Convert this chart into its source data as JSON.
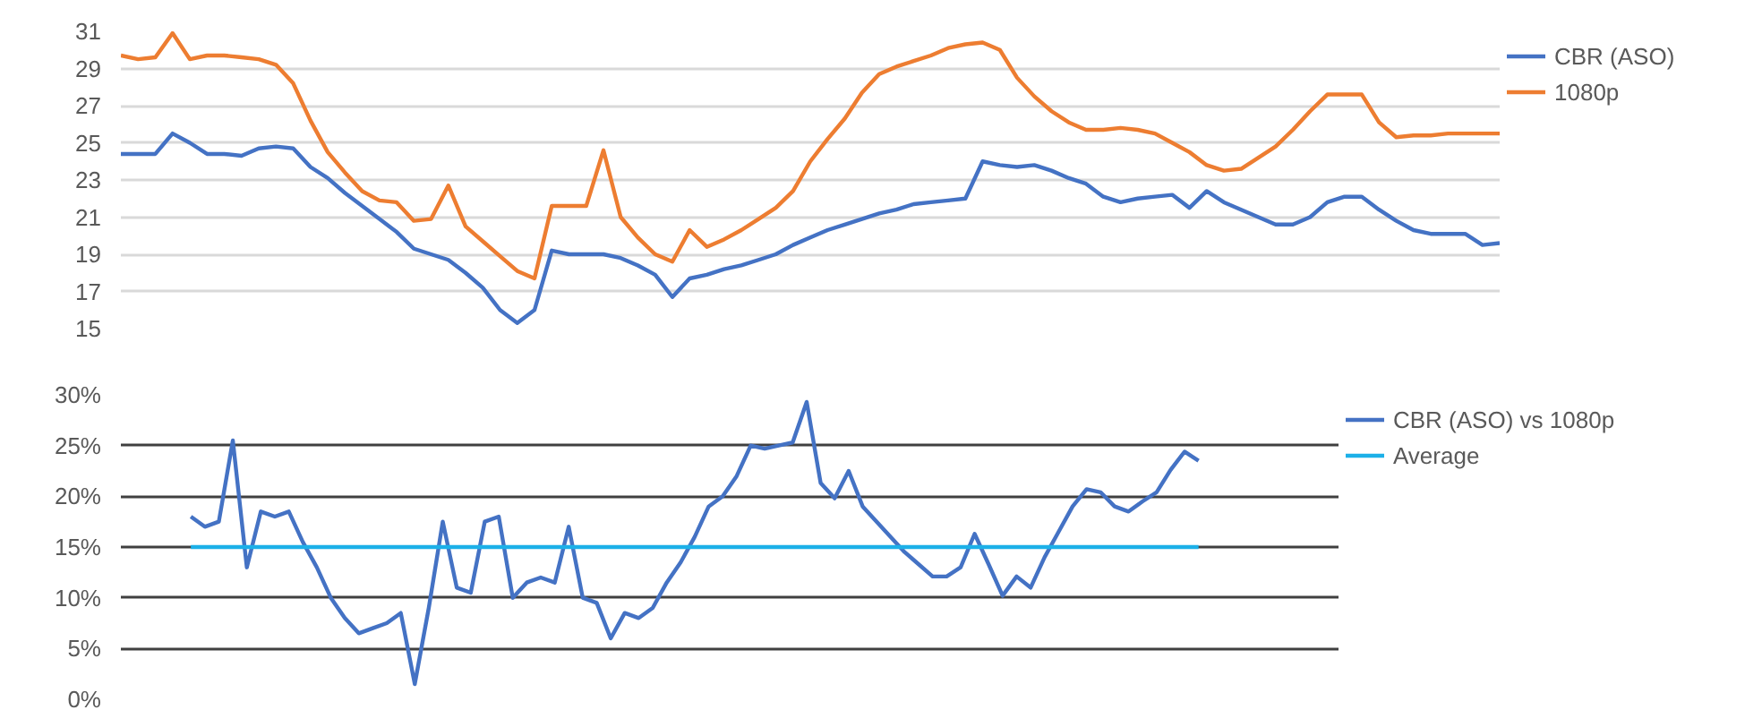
{
  "chart_data": [
    {
      "type": "line",
      "categories": [
        null,
        null,
        null,
        null,
        null,
        null,
        null,
        null,
        null,
        null,
        null,
        null,
        null,
        null,
        null,
        null,
        null,
        null,
        null,
        null,
        null,
        null,
        null,
        null,
        null,
        null,
        null,
        null,
        null,
        null,
        null,
        null,
        null,
        null,
        null,
        null,
        null,
        null,
        null,
        null,
        null,
        null,
        null,
        null,
        null,
        null,
        null,
        null,
        null,
        null,
        null,
        null,
        null,
        null,
        null,
        null,
        null,
        null,
        null,
        null,
        null,
        null,
        null,
        null,
        null,
        null,
        null,
        null,
        null,
        null,
        null,
        null,
        null,
        null,
        null,
        null,
        null,
        null,
        null,
        null,
        null
      ],
      "ylim": [
        15,
        31
      ],
      "yticks": [
        15,
        17,
        19,
        21,
        23,
        25,
        27,
        29,
        31
      ],
      "tick_labels": "y",
      "grid": "y",
      "legend": "right",
      "series": [
        {
          "name": "CBR (ASO)",
          "color": "#4472c4",
          "values": [
            24.4,
            24.4,
            24.4,
            25.5,
            25.0,
            24.4,
            24.4,
            24.3,
            24.7,
            24.8,
            24.7,
            23.7,
            23.1,
            22.3,
            21.6,
            20.9,
            20.2,
            19.3,
            19.0,
            18.7,
            18.0,
            17.2,
            16.0,
            15.3,
            16.0,
            19.2,
            19.0,
            19.0,
            19.0,
            18.8,
            18.4,
            17.9,
            16.7,
            17.7,
            17.9,
            18.2,
            18.4,
            18.7,
            19.0,
            19.5,
            19.9,
            20.3,
            20.6,
            20.9,
            21.2,
            21.4,
            21.7,
            21.8,
            21.9,
            22.0,
            24.0,
            23.8,
            23.7,
            23.8,
            23.5,
            23.1,
            22.8,
            22.1,
            21.8,
            22.0,
            22.1,
            22.2,
            21.5,
            22.4,
            21.8,
            21.4,
            21.0,
            20.6,
            20.6,
            21.0,
            21.8,
            22.1,
            22.1,
            21.4,
            20.8,
            20.3,
            20.1,
            20.1,
            20.1,
            19.5,
            19.6
          ]
        },
        {
          "name": "1080p",
          "color": "#ed7d31",
          "values": [
            29.7,
            29.5,
            29.6,
            30.9,
            29.5,
            29.7,
            29.7,
            29.6,
            29.5,
            29.2,
            28.2,
            26.2,
            24.5,
            23.4,
            22.4,
            21.9,
            21.8,
            20.8,
            20.9,
            22.7,
            20.5,
            19.7,
            18.9,
            18.1,
            17.7,
            21.6,
            21.6,
            21.6,
            24.6,
            21.0,
            19.9,
            19.0,
            18.6,
            20.3,
            19.4,
            19.8,
            20.3,
            20.9,
            21.5,
            22.4,
            24.0,
            25.2,
            26.3,
            27.7,
            28.7,
            29.1,
            29.4,
            29.7,
            30.1,
            30.3,
            30.4,
            30.0,
            28.5,
            27.5,
            26.7,
            26.1,
            25.7,
            25.7,
            25.8,
            25.7,
            25.5,
            25.0,
            24.5,
            23.8,
            23.5,
            23.6,
            24.2,
            24.8,
            25.7,
            26.7,
            27.6,
            27.6,
            27.6,
            26.1,
            25.3,
            25.4,
            25.4,
            25.5,
            25.5,
            25.5,
            25.5
          ]
        }
      ]
    },
    {
      "type": "line",
      "categories": [
        null,
        null,
        null,
        null,
        null,
        null,
        null,
        null,
        null,
        null,
        null,
        null,
        null,
        null,
        null,
        null,
        null,
        null,
        null,
        null,
        null,
        null,
        null,
        null,
        null,
        null,
        null,
        null,
        null,
        null,
        null,
        null,
        null,
        null,
        null,
        null,
        null,
        null,
        null,
        null,
        null,
        null,
        null,
        null,
        null,
        null,
        null,
        null,
        null,
        null,
        null,
        null,
        null,
        null,
        null,
        null,
        null,
        null,
        null,
        null,
        null,
        null,
        null,
        null,
        null,
        null,
        null,
        null,
        null,
        null,
        null,
        null,
        null,
        null,
        null,
        null,
        null,
        null,
        null,
        null,
        null,
        null,
        null,
        null,
        null,
        null,
        null,
        null
      ],
      "ylim": [
        0,
        30
      ],
      "yticks": [
        {
          "value": 0,
          "label": "0%"
        },
        {
          "value": 5,
          "label": "5%"
        },
        {
          "value": 10,
          "label": "10%"
        },
        {
          "value": 15,
          "label": "15%"
        },
        {
          "value": 20,
          "label": "20%"
        },
        {
          "value": 25,
          "label": "25%"
        },
        {
          "value": 30,
          "label": "30%"
        }
      ],
      "tick_labels": "y",
      "grid": "y",
      "legend": "right",
      "series": [
        {
          "name": "CBR (ASO) vs 1080p",
          "color": "#4472c4",
          "values": [
            null,
            null,
            null,
            null,
            null,
            18,
            17,
            17.5,
            25.5,
            13,
            18.5,
            18,
            18.5,
            15.5,
            13,
            10,
            8,
            6.5,
            7,
            7.5,
            8.5,
            1.5,
            9,
            17.5,
            11,
            10.5,
            17.5,
            18,
            10,
            11.5,
            12,
            11.5,
            17,
            10,
            9.5,
            6,
            8.5,
            8,
            9,
            11.5,
            13.5,
            16,
            19,
            20,
            22,
            25,
            24.7,
            25,
            25.3,
            29.3,
            21.3,
            19.8,
            22.5,
            19,
            17.5,
            16,
            14.5,
            13.3,
            12.1,
            12.1,
            13,
            16.3,
            13.3,
            10.2,
            12.1,
            11,
            14,
            16.5,
            19,
            20.7,
            20.4,
            19,
            18.5,
            19.5,
            20.4,
            22.6,
            24.4,
            23.5,
            null,
            null,
            null,
            null,
            null,
            null,
            null,
            null,
            null,
            null
          ]
        },
        {
          "name": "Average",
          "color": "#1cb0e8",
          "values": [
            null,
            null,
            null,
            null,
            null,
            15,
            15,
            15,
            15,
            15,
            15,
            15,
            15,
            15,
            15,
            15,
            15,
            15,
            15,
            15,
            15,
            15,
            15,
            15,
            15,
            15,
            15,
            15,
            15,
            15,
            15,
            15,
            15,
            15,
            15,
            15,
            15,
            15,
            15,
            15,
            15,
            15,
            15,
            15,
            15,
            15,
            15,
            15,
            15,
            15,
            15,
            15,
            15,
            15,
            15,
            15,
            15,
            15,
            15,
            15,
            15,
            15,
            15,
            15,
            15,
            15,
            15,
            15,
            15,
            15,
            15,
            15,
            15,
            15,
            15,
            15,
            15,
            15,
            null,
            null,
            null,
            null,
            null,
            null,
            null,
            null,
            null,
            null
          ]
        }
      ]
    }
  ]
}
